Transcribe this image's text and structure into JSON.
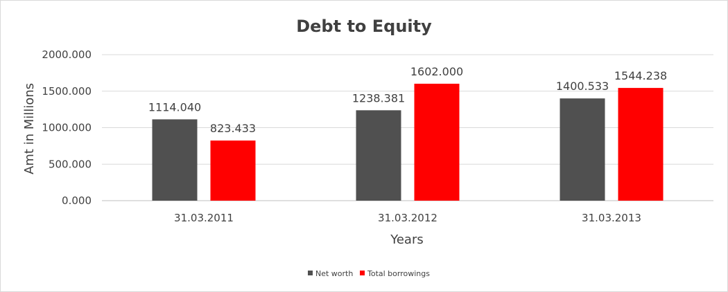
{
  "chart_data": {
    "type": "bar",
    "title": "Debt to Equity",
    "xlabel": "Years",
    "ylabel": "Amt in Millions",
    "categories": [
      "31.03.2011",
      "31.03.2012",
      "31.03.2013"
    ],
    "ylim": [
      0,
      2000
    ],
    "yticks": [
      "0.000",
      "500.000",
      "1000.000",
      "1500.000",
      "2000.000"
    ],
    "grid": true,
    "legend_position": "bottom",
    "series": [
      {
        "name": "Net worth",
        "color": "#505050",
        "values": [
          1114.04,
          1238.381,
          1400.533
        ],
        "labels": [
          "1114.040",
          "1238.381",
          "1400.533"
        ]
      },
      {
        "name": "Total borrowings",
        "color": "#ff0000",
        "values": [
          823.433,
          1602.0,
          1544.238
        ],
        "labels": [
          "823.433",
          "1602.000",
          "1544.238"
        ]
      }
    ]
  }
}
